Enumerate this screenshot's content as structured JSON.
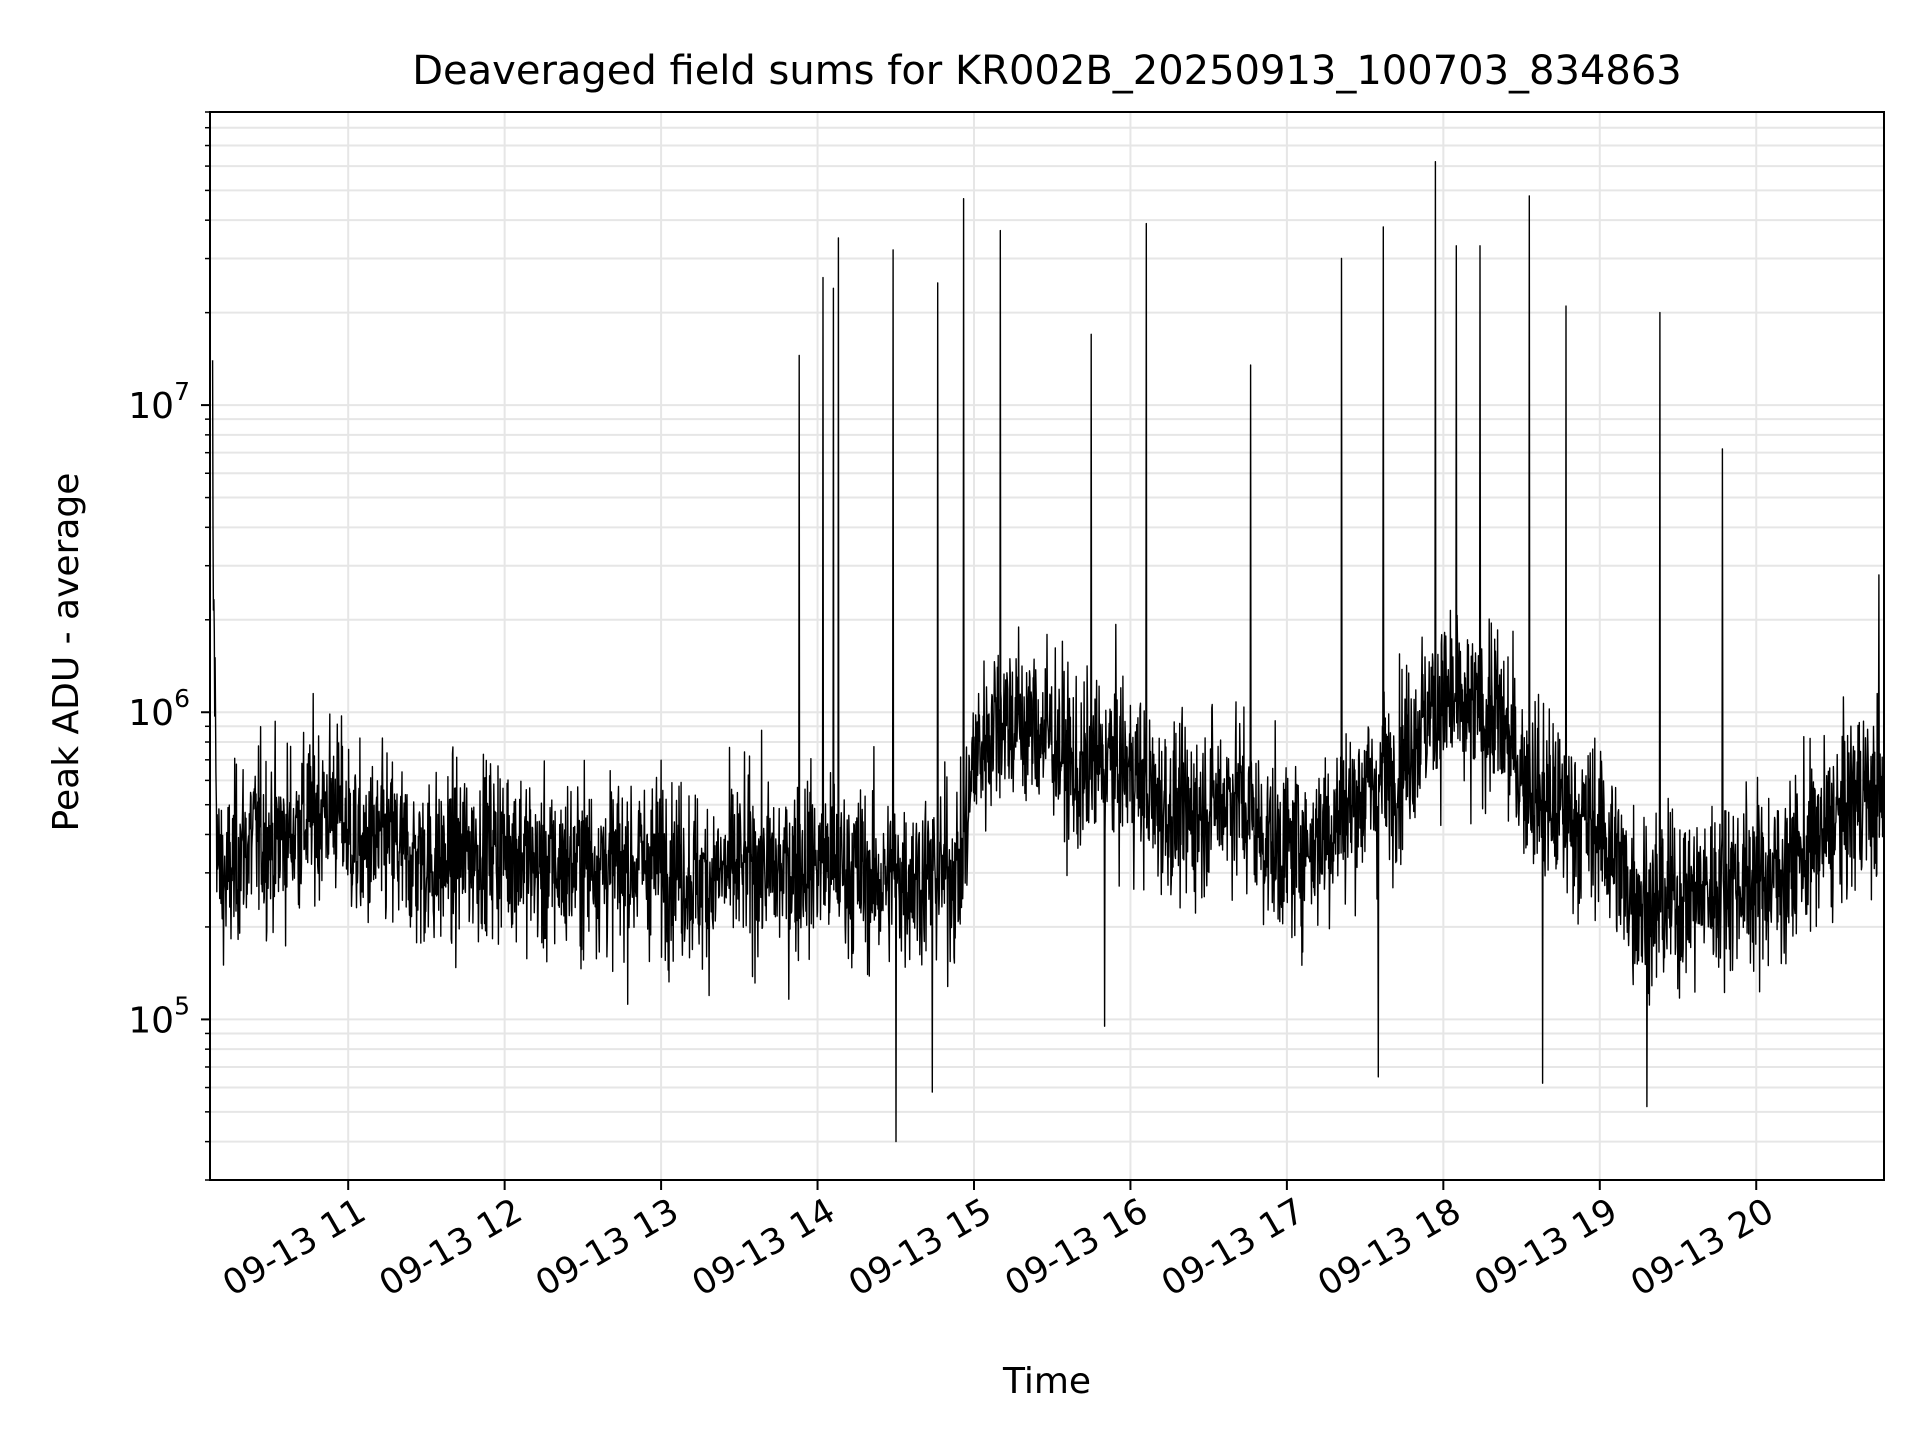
{
  "chart_data": {
    "type": "line",
    "title": "Deaveraged field sums for KR002B_20250913_100703_834863",
    "xlabel": "Time",
    "ylabel": "Peak ADU - average",
    "y_scale": "log",
    "ylim": [
      30000,
      90000000
    ],
    "xlim": [
      "2025-09-13 10:07",
      "2025-09-13 20:49"
    ],
    "x_ticks": [
      {
        "x": "2025-09-13 11:00",
        "label": "09-13 11"
      },
      {
        "x": "2025-09-13 12:00",
        "label": "09-13 12"
      },
      {
        "x": "2025-09-13 13:00",
        "label": "09-13 13"
      },
      {
        "x": "2025-09-13 14:00",
        "label": "09-13 14"
      },
      {
        "x": "2025-09-13 15:00",
        "label": "09-13 15"
      },
      {
        "x": "2025-09-13 16:00",
        "label": "09-13 16"
      },
      {
        "x": "2025-09-13 17:00",
        "label": "09-13 17"
      },
      {
        "x": "2025-09-13 18:00",
        "label": "09-13 18"
      },
      {
        "x": "2025-09-13 19:00",
        "label": "09-13 19"
      },
      {
        "x": "2025-09-13 20:00",
        "label": "09-13 20"
      }
    ],
    "y_ticks": [
      {
        "value": 100000,
        "base": "10",
        "exp": "5"
      },
      {
        "value": 1000000,
        "base": "10",
        "exp": "6"
      },
      {
        "value": 10000000,
        "base": "10",
        "exp": "7"
      }
    ],
    "grid": true,
    "line_color": "#000000",
    "series": [
      {
        "x": [
          "2025-09-13 10:08",
          "2025-09-13 10:10",
          "2025-09-13 10:14",
          "2025-09-13 10:18",
          "2025-09-13 10:25",
          "2025-09-13 10:32",
          "2025-09-13 10:40",
          "2025-09-13 10:48",
          "2025-09-13 10:55",
          "2025-09-13 11:05",
          "2025-09-13 11:15",
          "2025-09-13 11:25",
          "2025-09-13 11:35",
          "2025-09-13 11:45",
          "2025-09-13 11:55",
          "2025-09-13 12:05",
          "2025-09-13 12:15",
          "2025-09-13 12:25",
          "2025-09-13 12:35",
          "2025-09-13 12:45",
          "2025-09-13 12:55",
          "2025-09-13 13:05",
          "2025-09-13 13:15",
          "2025-09-13 13:25",
          "2025-09-13 13:35",
          "2025-09-13 13:45",
          "2025-09-13 13:55",
          "2025-09-13 14:05",
          "2025-09-13 14:15",
          "2025-09-13 14:25",
          "2025-09-13 14:35",
          "2025-09-13 14:45",
          "2025-09-13 14:55",
          "2025-09-13 15:00",
          "2025-09-13 15:10",
          "2025-09-13 15:20",
          "2025-09-13 15:30",
          "2025-09-13 15:40",
          "2025-09-13 15:50",
          "2025-09-13 16:00",
          "2025-09-13 16:10",
          "2025-09-13 16:20",
          "2025-09-13 16:30",
          "2025-09-13 16:40",
          "2025-09-13 16:50",
          "2025-09-13 17:00",
          "2025-09-13 17:10",
          "2025-09-13 17:20",
          "2025-09-13 17:30",
          "2025-09-13 17:40",
          "2025-09-13 17:50",
          "2025-09-13 18:00",
          "2025-09-13 18:10",
          "2025-09-13 18:20",
          "2025-09-13 18:30",
          "2025-09-13 18:40",
          "2025-09-13 18:50",
          "2025-09-13 19:00",
          "2025-09-13 19:10",
          "2025-09-13 19:20",
          "2025-09-13 19:30",
          "2025-09-13 19:40",
          "2025-09-13 19:50",
          "2025-09-13 20:00",
          "2025-09-13 20:10",
          "2025-09-13 20:20",
          "2025-09-13 20:30",
          "2025-09-13 20:40",
          "2025-09-13 20:48"
        ],
        "values": [
          3500000,
          300000,
          280000,
          350000,
          400000,
          380000,
          420000,
          480000,
          500000,
          350000,
          380000,
          330000,
          320000,
          350000,
          370000,
          360000,
          300000,
          320000,
          330000,
          310000,
          330000,
          320000,
          280000,
          300000,
          320000,
          300000,
          330000,
          320000,
          300000,
          280000,
          290000,
          300000,
          300000,
          700000,
          1000000,
          900000,
          850000,
          600000,
          700000,
          650000,
          500000,
          450000,
          500000,
          550000,
          400000,
          350000,
          380000,
          450000,
          550000,
          600000,
          900000,
          1100000,
          950000,
          1000000,
          650000,
          500000,
          450000,
          420000,
          280000,
          230000,
          250000,
          260000,
          290000,
          280000,
          300000,
          360000,
          430000,
          550000,
          500000
        ],
        "spikes": [
          {
            "x": "2025-09-13 10:08",
            "value": 14000000
          },
          {
            "x": "2025-09-13 13:53",
            "value": 14500000
          },
          {
            "x": "2025-09-13 14:02",
            "value": 26000000
          },
          {
            "x": "2025-09-13 14:06",
            "value": 24000000
          },
          {
            "x": "2025-09-13 14:08",
            "value": 35000000
          },
          {
            "x": "2025-09-13 14:29",
            "value": 32000000
          },
          {
            "x": "2025-09-13 14:46",
            "value": 25000000
          },
          {
            "x": "2025-09-13 14:56",
            "value": 47000000
          },
          {
            "x": "2025-09-13 15:10",
            "value": 37000000
          },
          {
            "x": "2025-09-13 15:45",
            "value": 17000000
          },
          {
            "x": "2025-09-13 16:06",
            "value": 39000000
          },
          {
            "x": "2025-09-13 16:46",
            "value": 13500000
          },
          {
            "x": "2025-09-13 17:21",
            "value": 30000000
          },
          {
            "x": "2025-09-13 17:37",
            "value": 38000000
          },
          {
            "x": "2025-09-13 17:57",
            "value": 62000000
          },
          {
            "x": "2025-09-13 18:05",
            "value": 33000000
          },
          {
            "x": "2025-09-13 18:14",
            "value": 33000000
          },
          {
            "x": "2025-09-13 18:33",
            "value": 48000000
          },
          {
            "x": "2025-09-13 18:47",
            "value": 21000000
          },
          {
            "x": "2025-09-13 19:23",
            "value": 20000000
          },
          {
            "x": "2025-09-13 19:47",
            "value": 7200000
          },
          {
            "x": "2025-09-13 20:47",
            "value": 2800000
          }
        ],
        "dips": [
          {
            "x": "2025-09-13 14:30",
            "value": 40000
          },
          {
            "x": "2025-09-13 14:44",
            "value": 58000
          },
          {
            "x": "2025-09-13 17:35",
            "value": 65000
          },
          {
            "x": "2025-09-13 19:18",
            "value": 52000
          },
          {
            "x": "2025-09-13 15:50",
            "value": 95000
          },
          {
            "x": "2025-09-13 18:38",
            "value": 62000
          }
        ]
      }
    ]
  }
}
